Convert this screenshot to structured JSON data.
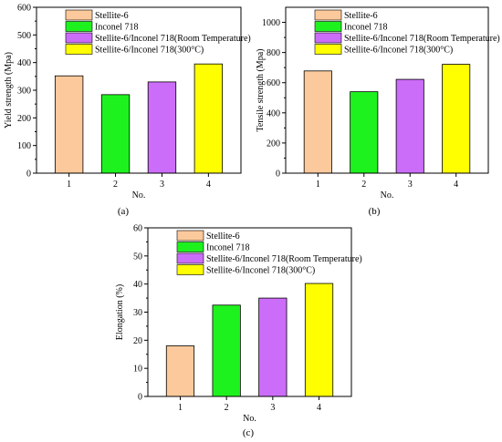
{
  "colors": {
    "Stellite-6": "#fbc99b",
    "Inconel 718": "#1ef21e",
    "Stellite-6/Inconel 718(Room Temperature)": "#cc6df9",
    "Stellite-6/Inconel 718(300°C)": "#ffff00"
  },
  "chart_data": [
    {
      "type": "bar",
      "panel_label": "(a)",
      "categories": [
        "1",
        "2",
        "3",
        "4"
      ],
      "values": [
        352,
        284,
        330,
        395
      ],
      "series_names": [
        "Stellite-6",
        "Inconel 718",
        "Stellite-6/Inconel 718(Room Temperature)",
        "Stellite-6/Inconel 718(300°C)"
      ],
      "xlabel": "No.",
      "ylabel": "Yield strength (Mpa)",
      "ylim": [
        0,
        600
      ],
      "yticks": [
        0,
        100,
        200,
        300,
        400,
        500,
        600
      ],
      "legend": "top-left",
      "grid": false
    },
    {
      "type": "bar",
      "panel_label": "(b)",
      "categories": [
        "1",
        "2",
        "3",
        "4"
      ],
      "values": [
        678,
        540,
        622,
        722
      ],
      "series_names": [
        "Stellite-6",
        "Inconel 718",
        "Stellite-6/Inconel 718(Room Temperature)",
        "Stellite-6/Inconel 718(300°C)"
      ],
      "xlabel": "No.",
      "ylabel": "Tensile strength (Mpa)",
      "ylim": [
        0,
        1100
      ],
      "yticks": [
        0,
        200,
        400,
        600,
        800,
        1000
      ],
      "legend": "top-left",
      "grid": false
    },
    {
      "type": "bar",
      "panel_label": "(c)",
      "categories": [
        "1",
        "2",
        "3",
        "4"
      ],
      "values": [
        18,
        32.5,
        35,
        40.2
      ],
      "series_names": [
        "Stellite-6",
        "Inconel 718",
        "Stellite-6/Inconel 718(Room Temperature)",
        "Stellite-6/Inconel 718(300°C)"
      ],
      "xlabel": "No.",
      "ylabel": "Elongation (%)",
      "ylim": [
        0,
        60
      ],
      "yticks": [
        0,
        10,
        20,
        30,
        40,
        50,
        60
      ],
      "legend": "top-left",
      "grid": false
    }
  ]
}
